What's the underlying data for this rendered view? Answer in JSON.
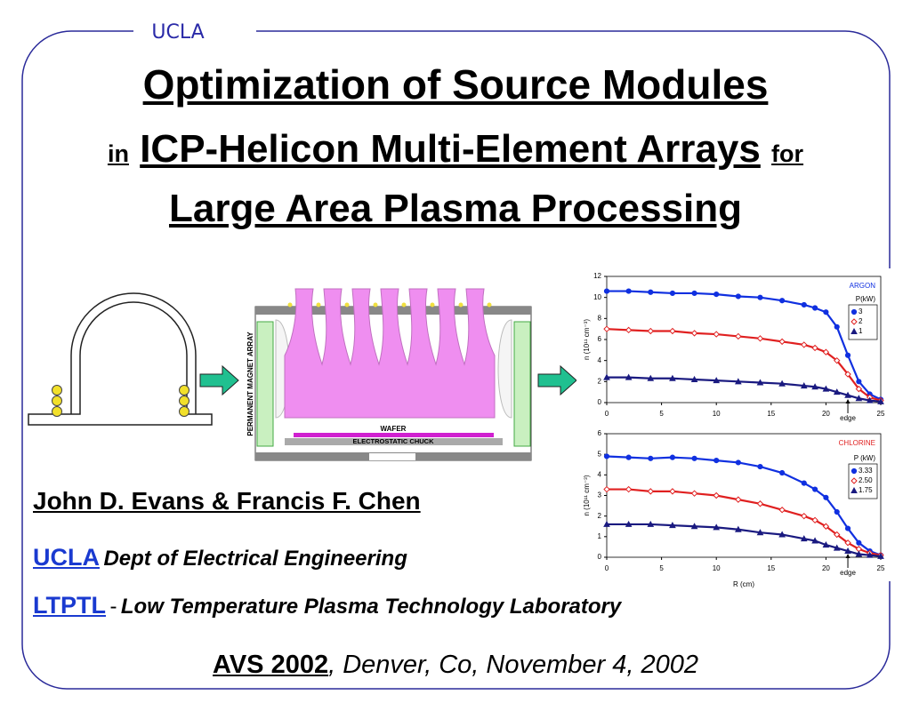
{
  "header": {
    "logo": "UCLA"
  },
  "title": {
    "line1": "Optimization of Source Modules",
    "line2_pre": "in",
    "line2_main": "ICP-Helicon Multi-Element Arrays",
    "line2_post": "for",
    "line3": "Large Area Plasma Processing"
  },
  "diagram": {
    "magnet_label": "PERMANENT MAGNET ARRAY",
    "wafer_label": "WAFER",
    "chuck_label": "ELECTROSTATIC CHUCK"
  },
  "authors": "John D. Evans & Francis F. Chen",
  "affiliations": [
    {
      "name": "UCLA",
      "separator": "",
      "detail": "Dept of Electrical Engineering"
    },
    {
      "name": "LTPTL",
      "separator": "-",
      "detail": "Low Temperature Plasma Technology Laboratory"
    }
  ],
  "footer": {
    "event": "AVS 2002",
    "rest": ", Denver, Co, November 4, 2002"
  },
  "charts": [
    {
      "type": "line",
      "title": "ARGON",
      "title_color": "#1030e0",
      "ylabel": "n (10¹¹ cm⁻³)",
      "legend_title": "P(kW)",
      "annotation": "edge",
      "annotation_x": 22,
      "x": [
        0,
        2,
        4,
        6,
        8,
        10,
        12,
        14,
        16,
        18,
        19,
        20,
        21,
        22,
        23,
        24,
        25
      ],
      "xlim": [
        0,
        25
      ],
      "xticks": [
        0,
        5,
        10,
        15,
        20,
        25
      ],
      "ylim": [
        0,
        12
      ],
      "yticks": [
        0,
        2,
        4,
        6,
        8,
        10,
        12
      ],
      "series": [
        {
          "name": "3",
          "color": "#1030e0",
          "marker": "circle",
          "values": [
            10.6,
            10.6,
            10.5,
            10.4,
            10.4,
            10.3,
            10.1,
            10.0,
            9.7,
            9.3,
            9.0,
            8.6,
            7.2,
            4.5,
            2.0,
            0.8,
            0.3
          ]
        },
        {
          "name": "2",
          "color": "#e02020",
          "marker": "diamond",
          "values": [
            7.0,
            6.9,
            6.8,
            6.8,
            6.6,
            6.5,
            6.3,
            6.1,
            5.8,
            5.5,
            5.2,
            4.8,
            4.0,
            2.7,
            1.3,
            0.5,
            0.2
          ]
        },
        {
          "name": "1",
          "color": "#1a1a80",
          "marker": "triangle",
          "values": [
            2.4,
            2.4,
            2.3,
            2.3,
            2.2,
            2.1,
            2.0,
            1.9,
            1.8,
            1.6,
            1.5,
            1.3,
            1.0,
            0.7,
            0.4,
            0.2,
            0.1
          ]
        }
      ]
    },
    {
      "type": "line",
      "title": "CHLORINE",
      "title_color": "#e02020",
      "ylabel": "n (10¹¹ cm⁻³)",
      "xlabel": "R (cm)",
      "legend_title": "P (kW)",
      "annotation": "edge",
      "annotation_x": 22,
      "x": [
        0,
        2,
        4,
        6,
        8,
        10,
        12,
        14,
        16,
        18,
        19,
        20,
        21,
        22,
        23,
        24,
        25
      ],
      "xlim": [
        0,
        25
      ],
      "xticks": [
        0,
        5,
        10,
        15,
        20,
        25
      ],
      "ylim": [
        0,
        6
      ],
      "yticks": [
        0,
        1,
        2,
        3,
        4,
        5,
        6
      ],
      "series": [
        {
          "name": "3.33",
          "color": "#1030e0",
          "marker": "circle",
          "values": [
            4.9,
            4.85,
            4.8,
            4.85,
            4.8,
            4.7,
            4.6,
            4.4,
            4.1,
            3.6,
            3.3,
            2.9,
            2.2,
            1.4,
            0.7,
            0.3,
            0.1
          ]
        },
        {
          "name": "2.50",
          "color": "#e02020",
          "marker": "diamond",
          "values": [
            3.3,
            3.3,
            3.2,
            3.2,
            3.1,
            3.0,
            2.8,
            2.6,
            2.3,
            2.0,
            1.8,
            1.5,
            1.1,
            0.7,
            0.4,
            0.2,
            0.1
          ]
        },
        {
          "name": "1.75",
          "color": "#1a1a80",
          "marker": "triangle",
          "values": [
            1.6,
            1.6,
            1.6,
            1.55,
            1.5,
            1.45,
            1.35,
            1.2,
            1.1,
            0.9,
            0.8,
            0.6,
            0.45,
            0.3,
            0.15,
            0.1,
            0.05
          ]
        }
      ]
    }
  ]
}
